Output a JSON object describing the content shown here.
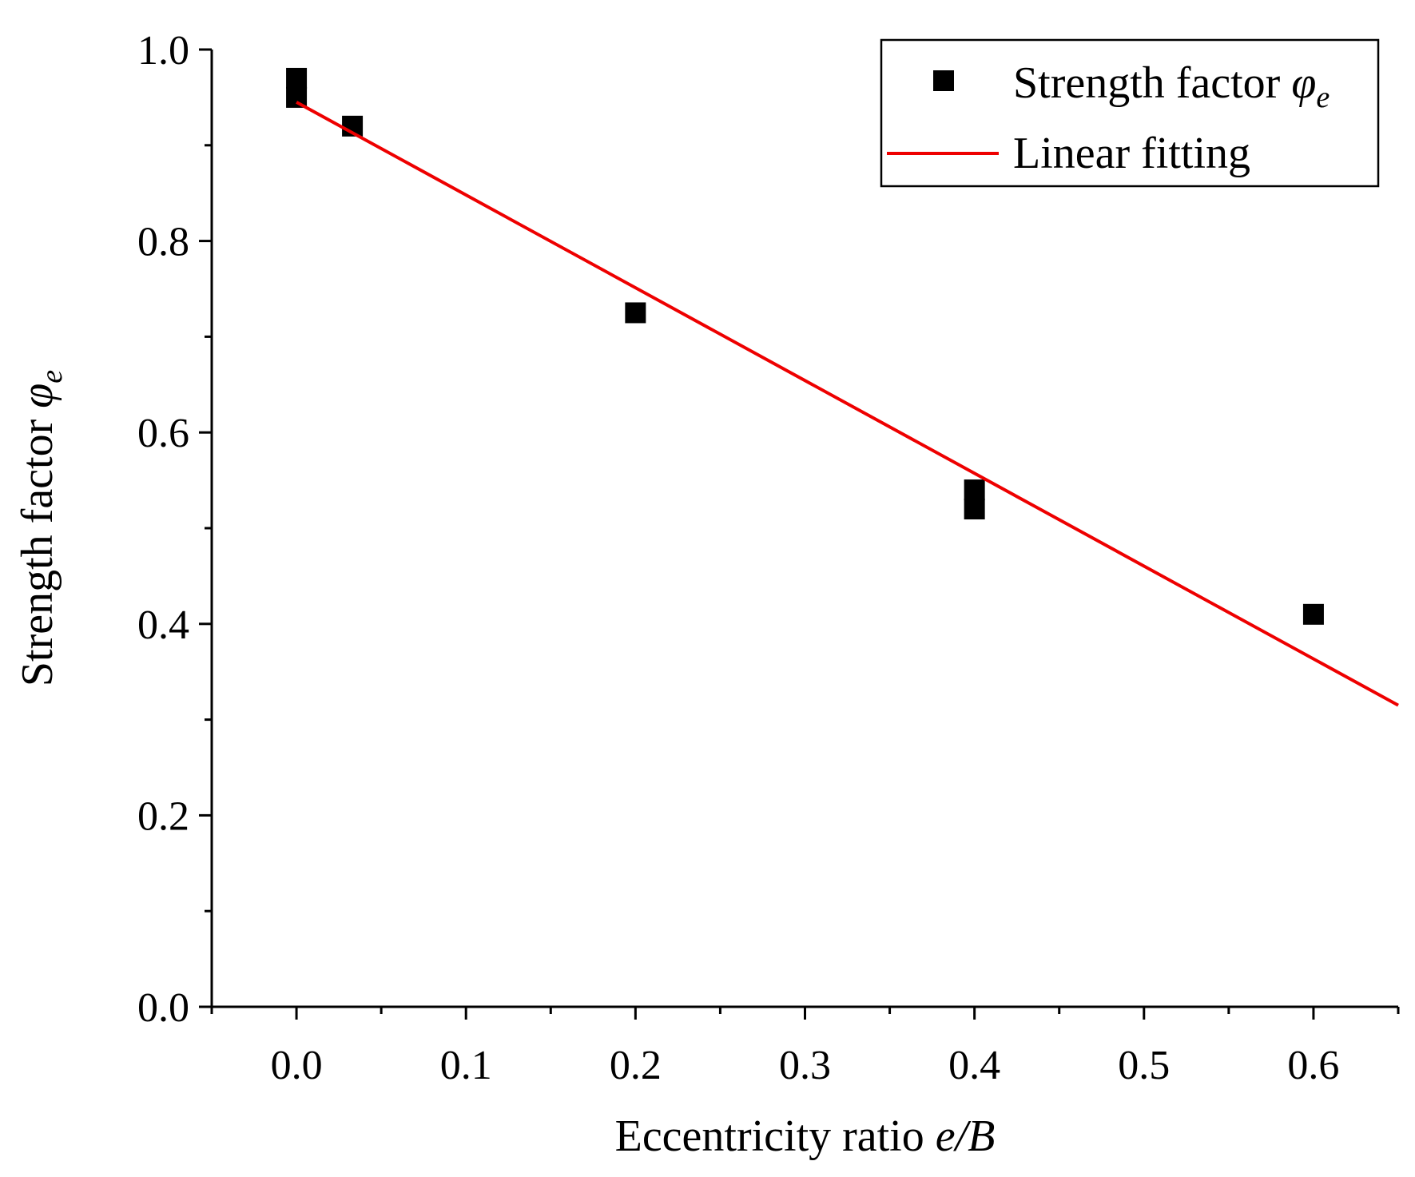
{
  "chart_data": {
    "type": "scatter",
    "xlabel": {
      "text": "Eccentricity ratio ",
      "var": "e/B"
    },
    "ylabel": {
      "text": "Strength factor ",
      "sym": "φ",
      "sub": "e"
    },
    "xlim": [
      -0.05,
      0.65
    ],
    "ylim": [
      0.0,
      1.0
    ],
    "x_ticks": [
      "0.0",
      "0.1",
      "0.2",
      "0.3",
      "0.4",
      "0.5",
      "0.6"
    ],
    "y_ticks": [
      "0.0",
      "0.2",
      "0.4",
      "0.6",
      "0.8",
      "1.0"
    ],
    "series": [
      {
        "name": "Strength factor φe",
        "kind": "points",
        "color": "#000000",
        "points": [
          {
            "x": 0.0,
            "y": 0.97
          },
          {
            "x": 0.0,
            "y": 0.95
          },
          {
            "x": 0.033,
            "y": 0.92
          },
          {
            "x": 0.2,
            "y": 0.725
          },
          {
            "x": 0.4,
            "y": 0.54
          },
          {
            "x": 0.4,
            "y": 0.52
          },
          {
            "x": 0.6,
            "y": 0.41
          }
        ]
      },
      {
        "name": "Linear fitting",
        "kind": "line",
        "color": "#ee0000",
        "points": [
          {
            "x": 0.0,
            "y": 0.945
          },
          {
            "x": 0.65,
            "y": 0.315
          }
        ]
      }
    ],
    "legend": {
      "position": "top-right",
      "entries": [
        {
          "text": "Strength factor ",
          "sym": "φ",
          "sub": "e"
        },
        {
          "text": "Linear fitting"
        }
      ]
    }
  }
}
